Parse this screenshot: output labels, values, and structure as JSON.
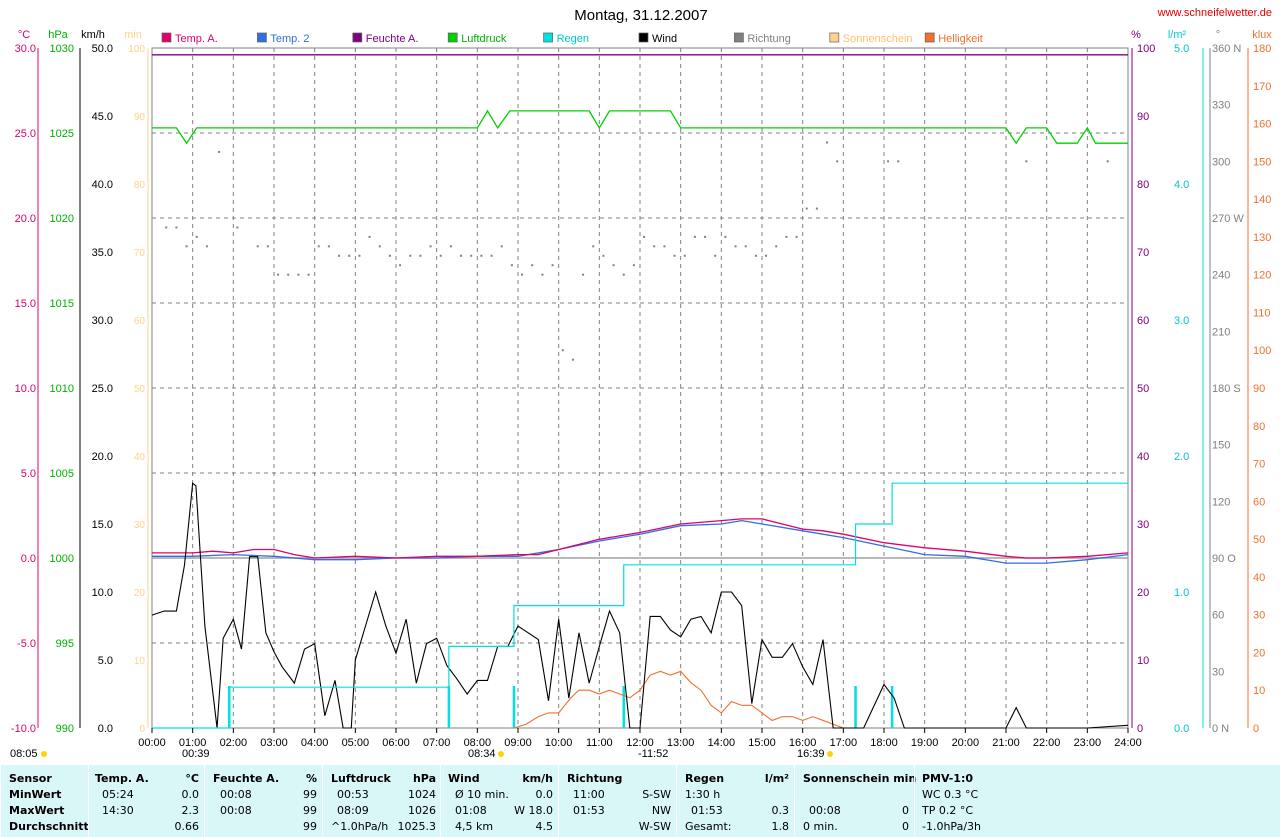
{
  "title": "Montag, 31.12.2007",
  "url": "www.schneifelwetter.de",
  "colors": {
    "temp": "#e0006e",
    "temp2": "#2f6fe0",
    "humidity": "#800080",
    "pressure": "#00d000",
    "rain": "#00e0e0",
    "wind": "#000000",
    "direction": "#808080",
    "sunshine": "#ffd28c",
    "brightness": "#f07030"
  },
  "legend": [
    "Temp. A.",
    "Temp. 2",
    "Feuchte A.",
    "Luftdruck",
    "Regen",
    "Wind",
    "Richtung",
    "Sonnenschein",
    "Helligkeit"
  ],
  "axes": {
    "left_units": [
      "°C",
      "hPa",
      "km/h",
      "min"
    ],
    "right_units": [
      "%",
      "l/m²",
      "°",
      "klux"
    ],
    "temp_ticks": [
      "30.0",
      "25.0",
      "20.0",
      "15.0",
      "10.0",
      "5.0",
      "0.0",
      "-5.0",
      "-10.0"
    ],
    "pressure_ticks": [
      "1030",
      "1025",
      "1020",
      "1015",
      "1010",
      "1005",
      "1000",
      "995",
      "990"
    ],
    "wind_ticks": [
      "50.0",
      "45.0",
      "40.0",
      "35.0",
      "30.0",
      "25.0",
      "20.0",
      "15.0",
      "10.0",
      "5.0",
      "0.0"
    ],
    "sun_ticks": [
      "100",
      "90",
      "80",
      "70",
      "60",
      "50",
      "40",
      "30",
      "20",
      "10",
      "0"
    ],
    "humidity_ticks": [
      "100",
      "90",
      "80",
      "70",
      "60",
      "50",
      "40",
      "30",
      "20",
      "10",
      "0"
    ],
    "rain_ticks": [
      "5.0",
      "4.0",
      "3.0",
      "2.0",
      "1.0",
      "0.0"
    ],
    "direction_ticks": [
      "360 N",
      "330",
      "300",
      "270 W",
      "240",
      "210",
      "180 S",
      "150",
      "120",
      "90 O",
      "60",
      "30",
      "0 N"
    ],
    "klux_ticks": [
      "180",
      "170",
      "160",
      "150",
      "140",
      "130",
      "120",
      "110",
      "100",
      "90",
      "80",
      "70",
      "60",
      "50",
      "40",
      "30",
      "20",
      "10",
      "0"
    ],
    "x_ticks": [
      "00:00",
      "01:00",
      "02:00",
      "03:00",
      "04:00",
      "05:00",
      "06:00",
      "07:00",
      "08:00",
      "09:00",
      "10:00",
      "11:00",
      "12:00",
      "13:00",
      "14:00",
      "15:00",
      "16:00",
      "17:00",
      "18:00",
      "19:00",
      "20:00",
      "21:00",
      "22:00",
      "23:00",
      "24:00"
    ]
  },
  "sun_events": {
    "sunrise": "08:05",
    "moonset": "00:39",
    "sun_rise_mark": "08:34",
    "noon": "-11:52",
    "sun_set_mark": "16:39"
  },
  "chart_data": {
    "type": "line",
    "title": "Montag, 31.12.2007",
    "x_range": [
      0,
      24
    ],
    "series": [
      {
        "name": "Temp. A.",
        "unit": "°C",
        "ylim": [
          -10,
          30
        ],
        "x": [
          0,
          1,
          1.5,
          2,
          2.5,
          3,
          3.5,
          4,
          5,
          6,
          7,
          8,
          9,
          9.5,
          10,
          11,
          11.5,
          12,
          13,
          14,
          14.5,
          15,
          16,
          16.5,
          17,
          18,
          19,
          20,
          21,
          21.5,
          22,
          23,
          24
        ],
        "y": [
          0.3,
          0.3,
          0.4,
          0.3,
          0.5,
          0.5,
          0.2,
          0.0,
          0.1,
          0.0,
          0.1,
          0.1,
          0.2,
          0.2,
          0.5,
          1.1,
          1.3,
          1.5,
          2.0,
          2.2,
          2.3,
          2.3,
          1.7,
          1.6,
          1.4,
          0.9,
          0.6,
          0.4,
          0.1,
          0.0,
          0.0,
          0.1,
          0.3
        ]
      },
      {
        "name": "Temp. 2",
        "unit": "°C",
        "ylim": [
          -10,
          30
        ],
        "x": [
          0,
          1,
          2,
          3,
          4,
          5,
          6,
          7,
          8,
          9,
          10,
          11,
          12,
          13,
          14,
          14.5,
          15,
          16,
          17,
          18,
          19,
          20,
          21,
          22,
          23,
          24
        ],
        "y": [
          0.1,
          0.1,
          0.2,
          0.1,
          -0.1,
          -0.1,
          0.0,
          0.0,
          0.1,
          0.1,
          0.5,
          1.0,
          1.4,
          1.9,
          2.0,
          2.2,
          2.0,
          1.6,
          1.2,
          0.7,
          0.2,
          0.1,
          -0.3,
          -0.3,
          -0.1,
          0.2
        ]
      },
      {
        "name": "Feuchte A.",
        "unit": "%",
        "ylim": [
          0,
          100
        ],
        "x": [
          0,
          24
        ],
        "y": [
          99,
          99
        ]
      },
      {
        "name": "Luftdruck",
        "unit": "hPa",
        "ylim": [
          990,
          1030
        ],
        "x": [
          0,
          0.6,
          0.85,
          1.1,
          8.0,
          8.25,
          8.5,
          8.8,
          10.75,
          11.0,
          11.25,
          12.75,
          13.0,
          21.0,
          21.25,
          21.5,
          22.0,
          22.25,
          22.75,
          23.0,
          23.2,
          24
        ],
        "y": [
          1025.3,
          1025.3,
          1024.4,
          1025.3,
          1025.3,
          1026.3,
          1025.3,
          1026.3,
          1026.3,
          1025.3,
          1026.3,
          1026.3,
          1025.3,
          1025.3,
          1024.4,
          1025.3,
          1025.3,
          1024.4,
          1024.4,
          1025.3,
          1024.4,
          1024.4
        ]
      },
      {
        "name": "Regen",
        "unit": "l/m²",
        "ylim": [
          0,
          5
        ],
        "x": [
          0,
          1.9,
          1.9,
          7.3,
          7.3,
          8.9,
          8.9,
          11.6,
          11.6,
          17.3,
          17.3,
          18.2,
          18.2,
          24
        ],
        "y": [
          0,
          0,
          0.3,
          0.3,
          0.6,
          0.6,
          0.9,
          0.9,
          1.2,
          1.2,
          1.5,
          1.5,
          1.8,
          1.8
        ]
      },
      {
        "name": "Wind",
        "unit": "km/h",
        "ylim": [
          0,
          50
        ],
        "x": [
          0,
          0.3,
          0.6,
          0.8,
          1.0,
          1.08,
          1.3,
          1.6,
          1.75,
          2.0,
          2.2,
          2.4,
          2.6,
          2.8,
          3.0,
          3.2,
          3.5,
          3.75,
          4.0,
          4.25,
          4.5,
          4.7,
          4.9,
          5.0,
          5.25,
          5.5,
          5.75,
          6.0,
          6.25,
          6.5,
          6.75,
          7.0,
          7.25,
          7.5,
          7.75,
          8.0,
          8.25,
          8.5,
          8.75,
          9.0,
          9.25,
          9.5,
          9.75,
          10.0,
          10.25,
          10.5,
          10.75,
          11.0,
          11.25,
          11.5,
          11.75,
          12.0,
          12.25,
          12.5,
          12.75,
          13.0,
          13.25,
          13.5,
          13.75,
          14.0,
          14.25,
          14.5,
          14.75,
          15.0,
          15.25,
          15.5,
          15.75,
          16.0,
          16.25,
          16.5,
          16.75,
          17.0,
          17.25,
          17.5,
          18.0,
          18.25,
          18.5,
          18.75,
          19.0,
          20.0,
          21.0,
          21.25,
          21.5,
          21.75,
          22.0,
          23.0,
          24
        ],
        "y": [
          8.3,
          8.6,
          8.6,
          12.0,
          18.0,
          17.8,
          7.5,
          0.0,
          6.6,
          8.0,
          5.8,
          12.6,
          12.6,
          7.0,
          5.6,
          4.5,
          3.3,
          5.8,
          6.2,
          0.9,
          3.5,
          0.0,
          0.0,
          5.0,
          7.5,
          10.0,
          7.5,
          5.5,
          8.0,
          3.3,
          6.2,
          6.6,
          4.6,
          3.6,
          2.5,
          3.5,
          3.5,
          6.0,
          6.0,
          7.5,
          7.0,
          6.5,
          2.0,
          8.0,
          2.2,
          7.0,
          3.3,
          6.0,
          8.6,
          7.0,
          0.0,
          0.0,
          8.2,
          8.2,
          7.2,
          6.7,
          8.0,
          8.2,
          7.0,
          10.0,
          10.0,
          9.0,
          1.8,
          6.5,
          5.2,
          5.2,
          6.2,
          4.5,
          3.2,
          6.5,
          0.0,
          0.0,
          0.0,
          0.0,
          3.2,
          2.2,
          0.0,
          0.0,
          0.0,
          0.0,
          0.0,
          1.5,
          0.0,
          0.0,
          0.0,
          0.0,
          0.2
        ]
      },
      {
        "name": "Richtung",
        "unit": "°",
        "ylim": [
          0,
          360
        ],
        "x": [
          0.35,
          0.6,
          0.85,
          1.1,
          1.35,
          1.65,
          2.1,
          2.6,
          2.85,
          3.1,
          3.35,
          3.6,
          3.85,
          4.1,
          4.35,
          4.6,
          4.85,
          5.1,
          5.35,
          5.6,
          5.85,
          6.1,
          6.35,
          6.6,
          6.85,
          7.1,
          7.35,
          7.6,
          7.85,
          8.1,
          8.35,
          8.6,
          8.85,
          9.1,
          9.35,
          9.6,
          9.85,
          10.1,
          10.35,
          10.6,
          10.85,
          11.1,
          11.35,
          11.6,
          11.85,
          12.1,
          12.35,
          12.6,
          12.85,
          13.1,
          13.35,
          13.6,
          13.85,
          14.1,
          14.35,
          14.6,
          14.85,
          15.1,
          15.35,
          15.6,
          15.85,
          16.1,
          16.35,
          16.6,
          16.85,
          18.1,
          18.35,
          21.5,
          23.5
        ],
        "y": [
          265,
          265,
          255,
          260,
          255,
          305,
          265,
          255,
          255,
          240,
          240,
          240,
          240,
          255,
          255,
          250,
          250,
          250,
          260,
          255,
          250,
          245,
          250,
          250,
          255,
          250,
          255,
          250,
          250,
          250,
          250,
          255,
          245,
          240,
          245,
          240,
          245,
          200,
          195,
          240,
          255,
          250,
          245,
          240,
          245,
          260,
          255,
          255,
          250,
          250,
          260,
          260,
          250,
          260,
          255,
          255,
          250,
          250,
          255,
          260,
          260,
          275,
          275,
          310,
          300,
          300,
          300,
          300,
          300
        ]
      },
      {
        "name": "Helligkeit",
        "unit": "klux",
        "ylim": [
          0,
          180
        ],
        "x": [
          8.9,
          9.2,
          9.5,
          9.75,
          10.0,
          10.3,
          10.5,
          10.75,
          11.0,
          11.25,
          11.5,
          11.75,
          12.0,
          12.25,
          12.5,
          12.75,
          13.0,
          13.25,
          13.5,
          13.75,
          14.0,
          14.25,
          14.5,
          14.75,
          15.0,
          15.25,
          15.5,
          15.75,
          16.0,
          16.25,
          16.5,
          16.75,
          17.0
        ],
        "y": [
          0,
          1,
          3,
          4,
          4,
          8,
          10,
          10,
          9,
          10,
          9,
          8,
          10,
          14,
          15,
          14,
          15,
          12,
          10,
          6,
          4,
          7,
          6,
          6,
          4,
          2,
          3,
          3,
          2,
          3,
          2,
          1,
          0
        ]
      }
    ]
  },
  "stats": {
    "sensor": {
      "title": "Sensor",
      "rows": [
        "MinWert",
        "MaxWert",
        "Durchschnitt"
      ]
    },
    "temp": {
      "title": "Temp. A.",
      "unit": "°C",
      "min_time": "05:24",
      "min": "0.0",
      "max_time": "14:30",
      "max": "2.3",
      "avg": "0.66"
    },
    "humidity": {
      "title": "Feuchte A.",
      "unit": "%",
      "min_time": "00:08",
      "min": "99",
      "max_time": "00:08",
      "max": "99",
      "avg": "99"
    },
    "pressure": {
      "title": "Luftdruck",
      "unit": "hPa",
      "min_time": "00:53",
      "min": "1024",
      "max_time": "08:09",
      "max": "1026",
      "trend": "^1.0hPa/h",
      "avg": "1025.3"
    },
    "wind": {
      "title": "Wind",
      "unit": "km/h",
      "l1": "Ø 10 min.",
      "v1": "0.0",
      "l2": "01:08",
      "v2": "W 18.0",
      "l3": "4,5 km",
      "v3": "4.5"
    },
    "direction": {
      "title": "Richtung",
      "t1": "11:00",
      "v1": "S-SW",
      "t2": "01:53",
      "v2": "NW",
      "v3": "W-SW"
    },
    "rain": {
      "title": "Regen",
      "unit": "l/m²",
      "l1": "1:30 h",
      "v1": "",
      "l2": "01:53",
      "v2": "0.3",
      "l3": "Gesamt:",
      "v3": "1.8"
    },
    "sunshine": {
      "title": "Sonnenschein min",
      "l2": "00:08",
      "v2": "0",
      "l3": "0 min.",
      "v3": "0"
    },
    "pmv": {
      "title": "PMV-1:0",
      "l1": "WC 0.3 °C",
      "l2": "TP 0.2 °C",
      "l3": "-1.0hPa/3h"
    }
  }
}
